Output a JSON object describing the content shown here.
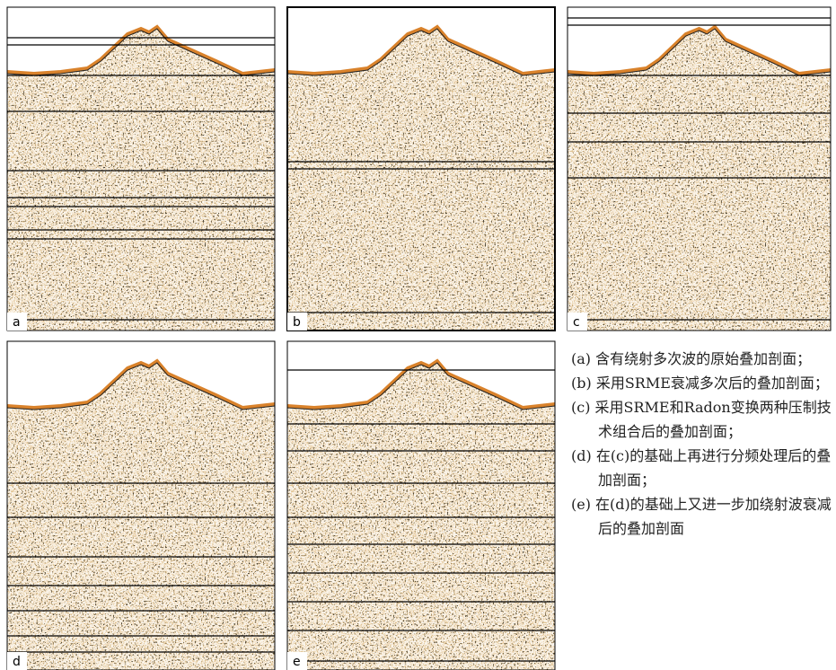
{
  "panels": [
    {
      "label": "a"
    },
    {
      "label": "b"
    },
    {
      "label": "c"
    },
    {
      "label": "d"
    },
    {
      "label": "e"
    }
  ],
  "caption": [
    "(a) 含有绕射多次波的原始叠加剖面；",
    "(b) 采用SRME衰减多次后的叠加剖面；",
    "(c) 采用SRME和Radon变换两种压制技术组合后的叠加剖面；",
    "(d) 在(c)的基础上再进行分频处理后的叠加剖面；",
    "(e) 在(d)的基础上又进一步加绕射波衰减后的叠加剖面"
  ]
}
